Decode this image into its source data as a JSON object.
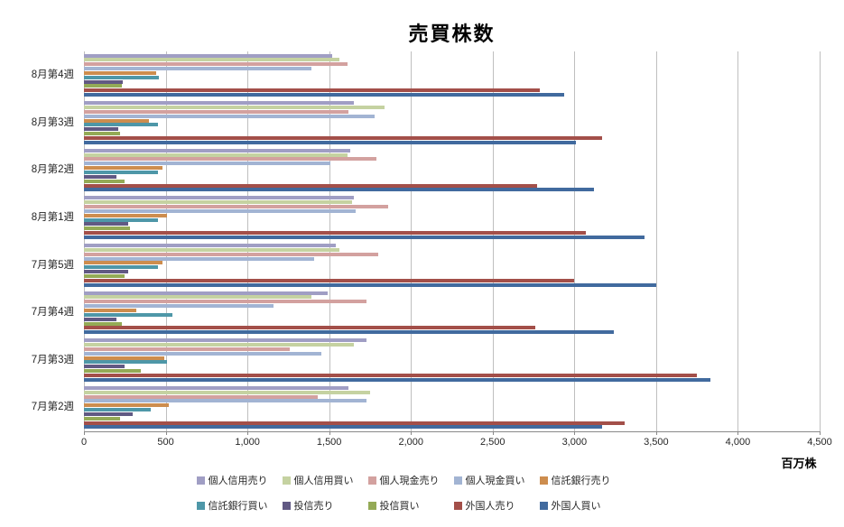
{
  "title": "売買株数",
  "unit_label": "百万株",
  "chart_data": {
    "type": "bar",
    "orientation": "horizontal",
    "title": "売買株数",
    "xlabel": "百万株",
    "ylabel": "",
    "xlim": [
      0,
      4500
    ],
    "x_tick_step": 500,
    "x_tick_labels": [
      "0",
      "500",
      "1,000",
      "1,500",
      "2,000",
      "2,500",
      "3,000",
      "3,500",
      "4,000",
      "4,500"
    ],
    "grid": "vertical-gridlines-on",
    "legend_position": "bottom-two-rows",
    "categories": [
      "8月第4週",
      "8月第3週",
      "8月第2週",
      "8月第1週",
      "7月第5週",
      "7月第4週",
      "7月第3週",
      "7月第2週"
    ],
    "series": [
      {
        "name": "個人信用売り",
        "color": "#a09ec4",
        "values": [
          1520,
          1650,
          1630,
          1650,
          1540,
          1490,
          1730,
          1620
        ]
      },
      {
        "name": "個人信用買い",
        "color": "#c5d2a1",
        "values": [
          1560,
          1840,
          1610,
          1640,
          1560,
          1390,
          1650,
          1750
        ]
      },
      {
        "name": "個人現金売り",
        "color": "#d3a19f",
        "values": [
          1610,
          1620,
          1790,
          1860,
          1800,
          1730,
          1260,
          1430
        ]
      },
      {
        "name": "個人現金買い",
        "color": "#a2b4d3",
        "values": [
          1390,
          1780,
          1510,
          1660,
          1410,
          1160,
          1450,
          1730
        ]
      },
      {
        "name": "信託銀行売り",
        "color": "#cd8d4e",
        "values": [
          440,
          400,
          480,
          510,
          480,
          320,
          490,
          520
        ]
      },
      {
        "name": "信託銀行買い",
        "color": "#4e97a8",
        "values": [
          460,
          450,
          450,
          450,
          450,
          540,
          510,
          410
        ]
      },
      {
        "name": "投信売り",
        "color": "#615983",
        "values": [
          240,
          210,
          200,
          270,
          270,
          200,
          250,
          300
        ]
      },
      {
        "name": "投信買い",
        "color": "#94aa56",
        "values": [
          230,
          220,
          250,
          280,
          250,
          230,
          350,
          220
        ]
      },
      {
        "name": "外国人売り",
        "color": "#a34f49",
        "values": [
          2790,
          3170,
          2770,
          3070,
          3000,
          2760,
          3750,
          3310
        ]
      },
      {
        "name": "外国人買い",
        "color": "#416a9e",
        "values": [
          2940,
          3010,
          3120,
          3430,
          3500,
          3240,
          3830,
          3170
        ]
      }
    ],
    "legend_rows": [
      [
        "個人信用売り",
        "個人信用買い",
        "個人現金売り",
        "個人現金買い",
        "信託銀行売り"
      ],
      [
        "信託銀行買い",
        "投信売り",
        "投信買い",
        "外国人売り",
        "外国人買い"
      ]
    ]
  }
}
